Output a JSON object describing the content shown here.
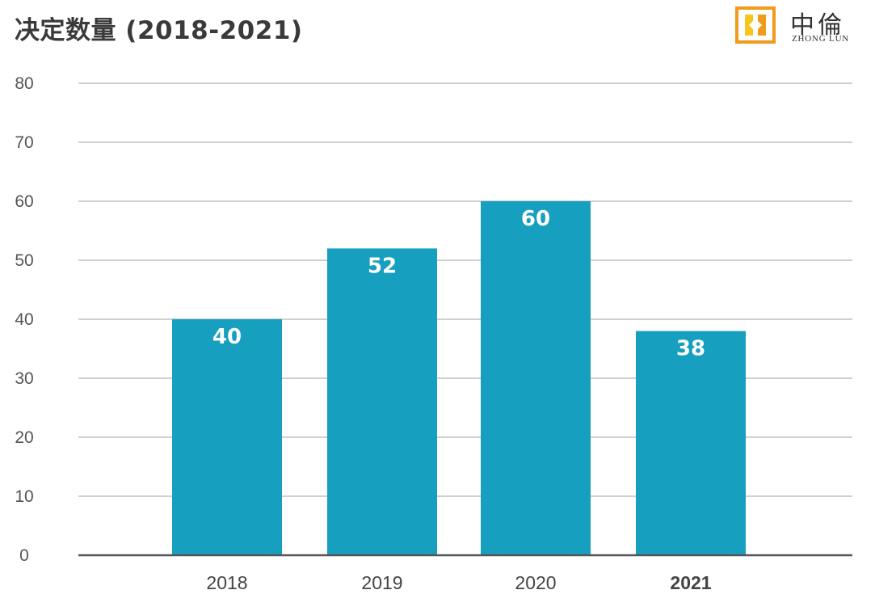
{
  "header": {
    "title": "决定数量 (2018-2021)"
  },
  "logo": {
    "name_cn": "中倫",
    "name_en": "ZHONG LUN"
  },
  "colors": {
    "bar": "#169fbf",
    "grid": "#d0d0d0",
    "baseline": "#555555",
    "logo_orange": "#f29a1c",
    "logo_yellow": "#f7c51e"
  },
  "chart_data": {
    "type": "bar",
    "title": "决定数量 (2018-2021)",
    "xlabel": "",
    "ylabel": "",
    "categories": [
      "2018",
      "2019",
      "2020",
      "2021"
    ],
    "values": [
      40,
      52,
      60,
      38
    ],
    "data_labels": [
      "40",
      "52",
      "60",
      "38"
    ],
    "highlight_category": "2021",
    "ylim": [
      0,
      80
    ],
    "yticks": [
      "0",
      "10",
      "20",
      "30",
      "40",
      "50",
      "60",
      "70",
      "80"
    ],
    "grid": true,
    "legend": "none"
  }
}
